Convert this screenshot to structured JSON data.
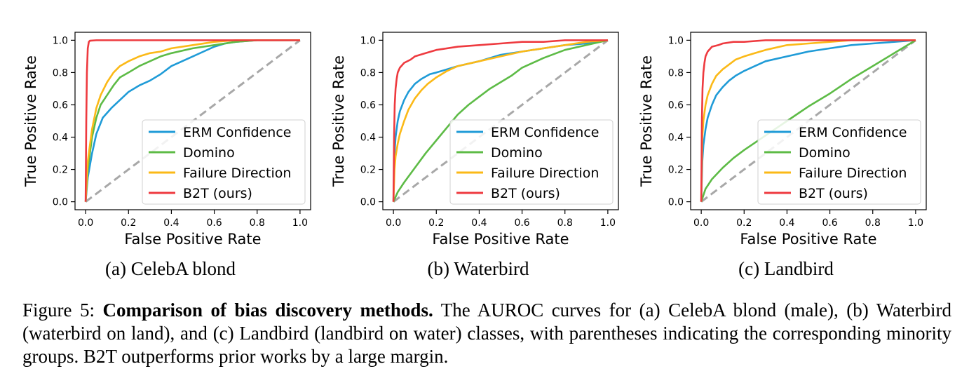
{
  "chart_data": [
    {
      "type": "line",
      "subcaption": "(a) CelebA blond",
      "xlabel": "False Positive Rate",
      "ylabel": "True Positive Rate",
      "xlim": [
        0,
        1
      ],
      "ylim": [
        0,
        1
      ],
      "xticks": [
        "0.0",
        "0.2",
        "0.4",
        "0.6",
        "0.8",
        "1.0"
      ],
      "yticks": [
        "0.0",
        "0.2",
        "0.4",
        "0.6",
        "0.8",
        "1.0"
      ],
      "legend_position": "lower-right",
      "diagonal_reference": true,
      "series": [
        {
          "name": "ERM Confidence",
          "color": "#1f9bd7",
          "x": [
            0,
            0.01,
            0.03,
            0.05,
            0.08,
            0.12,
            0.16,
            0.2,
            0.25,
            0.3,
            0.35,
            0.4,
            0.45,
            0.5,
            0.55,
            0.6,
            0.65,
            0.7,
            0.8,
            1.0
          ],
          "y": [
            0,
            0.15,
            0.3,
            0.42,
            0.52,
            0.58,
            0.63,
            0.68,
            0.72,
            0.75,
            0.79,
            0.84,
            0.87,
            0.9,
            0.93,
            0.96,
            0.98,
            0.99,
            1.0,
            1.0
          ]
        },
        {
          "name": "Domino",
          "color": "#5dbb46",
          "x": [
            0,
            0.01,
            0.03,
            0.05,
            0.07,
            0.1,
            0.13,
            0.16,
            0.2,
            0.25,
            0.3,
            0.35,
            0.4,
            0.5,
            0.6,
            0.7,
            0.8,
            1.0
          ],
          "y": [
            0,
            0.2,
            0.4,
            0.52,
            0.6,
            0.66,
            0.72,
            0.77,
            0.8,
            0.84,
            0.87,
            0.9,
            0.92,
            0.95,
            0.97,
            0.99,
            1.0,
            1.0
          ]
        },
        {
          "name": "Failure Direction",
          "color": "#fbb917",
          "x": [
            0,
            0.01,
            0.03,
            0.05,
            0.07,
            0.1,
            0.13,
            0.16,
            0.2,
            0.25,
            0.3,
            0.35,
            0.4,
            0.5,
            0.6,
            0.7,
            0.8,
            1.0
          ],
          "y": [
            0,
            0.25,
            0.45,
            0.58,
            0.66,
            0.74,
            0.8,
            0.84,
            0.87,
            0.9,
            0.92,
            0.93,
            0.95,
            0.97,
            0.99,
            1.0,
            1.0,
            1.0
          ]
        },
        {
          "name": "B2T (ours)",
          "color": "#ee3a3f",
          "x": [
            0,
            0.003,
            0.006,
            0.01,
            0.015,
            0.02,
            0.05,
            0.1,
            1.0
          ],
          "y": [
            0,
            0.5,
            0.8,
            0.95,
            0.99,
            0.997,
            1.0,
            1.0,
            1.0
          ]
        }
      ]
    },
    {
      "type": "line",
      "subcaption": "(b) Waterbird",
      "xlabel": "False Positive Rate",
      "ylabel": "True Positive Rate",
      "xlim": [
        0,
        1
      ],
      "ylim": [
        0,
        1
      ],
      "xticks": [
        "0.0",
        "0.2",
        "0.4",
        "0.6",
        "0.8",
        "1.0"
      ],
      "yticks": [
        "0.0",
        "0.2",
        "0.4",
        "0.6",
        "0.8",
        "1.0"
      ],
      "legend_position": "lower-right",
      "diagonal_reference": true,
      "series": [
        {
          "name": "ERM Confidence",
          "color": "#1f9bd7",
          "x": [
            0,
            0.005,
            0.01,
            0.02,
            0.03,
            0.05,
            0.07,
            0.1,
            0.13,
            0.17,
            0.2,
            0.25,
            0.3,
            0.4,
            0.5,
            0.6,
            0.7,
            0.8,
            0.9,
            1.0
          ],
          "y": [
            0,
            0.3,
            0.4,
            0.5,
            0.56,
            0.63,
            0.68,
            0.73,
            0.76,
            0.79,
            0.8,
            0.82,
            0.84,
            0.87,
            0.91,
            0.93,
            0.95,
            0.97,
            0.98,
            1.0
          ]
        },
        {
          "name": "Domino",
          "color": "#5dbb46",
          "x": [
            0,
            0.02,
            0.05,
            0.1,
            0.15,
            0.2,
            0.25,
            0.3,
            0.35,
            0.4,
            0.45,
            0.5,
            0.55,
            0.6,
            0.7,
            0.8,
            0.9,
            1.0
          ],
          "y": [
            0,
            0.06,
            0.12,
            0.21,
            0.3,
            0.38,
            0.46,
            0.54,
            0.6,
            0.65,
            0.7,
            0.74,
            0.78,
            0.83,
            0.89,
            0.94,
            0.97,
            1.0
          ]
        },
        {
          "name": "Failure Direction",
          "color": "#fbb917",
          "x": [
            0,
            0.005,
            0.01,
            0.02,
            0.03,
            0.05,
            0.07,
            0.1,
            0.13,
            0.16,
            0.2,
            0.25,
            0.3,
            0.4,
            0.5,
            0.6,
            0.7,
            0.8,
            0.9,
            1.0
          ],
          "y": [
            0,
            0.2,
            0.28,
            0.36,
            0.42,
            0.5,
            0.57,
            0.64,
            0.69,
            0.73,
            0.77,
            0.81,
            0.84,
            0.87,
            0.9,
            0.93,
            0.95,
            0.97,
            0.99,
            1.0
          ]
        },
        {
          "name": "B2T (ours)",
          "color": "#ee3a3f",
          "x": [
            0,
            0.003,
            0.006,
            0.01,
            0.015,
            0.02,
            0.03,
            0.05,
            0.08,
            0.1,
            0.15,
            0.2,
            0.3,
            0.4,
            0.5,
            0.6,
            0.7,
            0.8,
            0.9,
            1.0
          ],
          "y": [
            0,
            0.4,
            0.6,
            0.7,
            0.76,
            0.8,
            0.83,
            0.86,
            0.88,
            0.9,
            0.92,
            0.94,
            0.96,
            0.97,
            0.98,
            0.99,
            0.99,
            1.0,
            1.0,
            1.0
          ]
        }
      ]
    },
    {
      "type": "line",
      "subcaption": "(c) Landbird",
      "xlabel": "False Positive Rate",
      "ylabel": "True Positive Rate",
      "xlim": [
        0,
        1
      ],
      "ylim": [
        0,
        1
      ],
      "xticks": [
        "0.0",
        "0.2",
        "0.4",
        "0.6",
        "0.8",
        "1.0"
      ],
      "yticks": [
        "0.0",
        "0.2",
        "0.4",
        "0.6",
        "0.8",
        "1.0"
      ],
      "legend_position": "lower-right",
      "diagonal_reference": true,
      "series": [
        {
          "name": "ERM Confidence",
          "color": "#1f9bd7",
          "x": [
            0,
            0.005,
            0.01,
            0.02,
            0.03,
            0.05,
            0.07,
            0.1,
            0.13,
            0.16,
            0.2,
            0.25,
            0.3,
            0.4,
            0.5,
            0.6,
            0.7,
            0.8,
            0.9,
            1.0
          ],
          "y": [
            0,
            0.25,
            0.35,
            0.45,
            0.52,
            0.6,
            0.66,
            0.71,
            0.75,
            0.78,
            0.81,
            0.84,
            0.87,
            0.9,
            0.93,
            0.95,
            0.97,
            0.98,
            0.99,
            1.0
          ]
        },
        {
          "name": "Domino",
          "color": "#5dbb46",
          "x": [
            0,
            0.02,
            0.05,
            0.1,
            0.15,
            0.2,
            0.3,
            0.4,
            0.5,
            0.6,
            0.7,
            0.8,
            0.9,
            1.0
          ],
          "y": [
            0,
            0.08,
            0.14,
            0.21,
            0.27,
            0.32,
            0.41,
            0.5,
            0.59,
            0.67,
            0.76,
            0.84,
            0.92,
            1.0
          ]
        },
        {
          "name": "Failure Direction",
          "color": "#fbb917",
          "x": [
            0,
            0.005,
            0.01,
            0.02,
            0.03,
            0.05,
            0.07,
            0.1,
            0.13,
            0.16,
            0.2,
            0.25,
            0.3,
            0.4,
            0.5,
            0.6,
            0.7,
            0.8,
            1.0
          ],
          "y": [
            0,
            0.4,
            0.5,
            0.6,
            0.66,
            0.73,
            0.78,
            0.82,
            0.85,
            0.88,
            0.9,
            0.92,
            0.94,
            0.97,
            0.98,
            0.99,
            1.0,
            1.0,
            1.0
          ]
        },
        {
          "name": "B2T (ours)",
          "color": "#ee3a3f",
          "x": [
            0,
            0.003,
            0.006,
            0.01,
            0.015,
            0.02,
            0.03,
            0.05,
            0.08,
            0.1,
            0.15,
            0.2,
            0.3,
            0.4,
            0.5,
            1.0
          ],
          "y": [
            0,
            0.5,
            0.7,
            0.8,
            0.86,
            0.9,
            0.93,
            0.96,
            0.97,
            0.98,
            0.99,
            0.99,
            1.0,
            1.0,
            1.0,
            1.0
          ]
        }
      ]
    }
  ],
  "caption": {
    "prefix": "Figure 5: ",
    "bold": "Comparison of bias discovery methods.",
    "body": " The AUROC curves for (a) CelebA blond (male), (b) Waterbird (waterbird on land), and (c) Landbird (landbird on water) classes, with parentheses indicating the corresponding minority groups. B2T outperforms prior works by a large margin."
  }
}
